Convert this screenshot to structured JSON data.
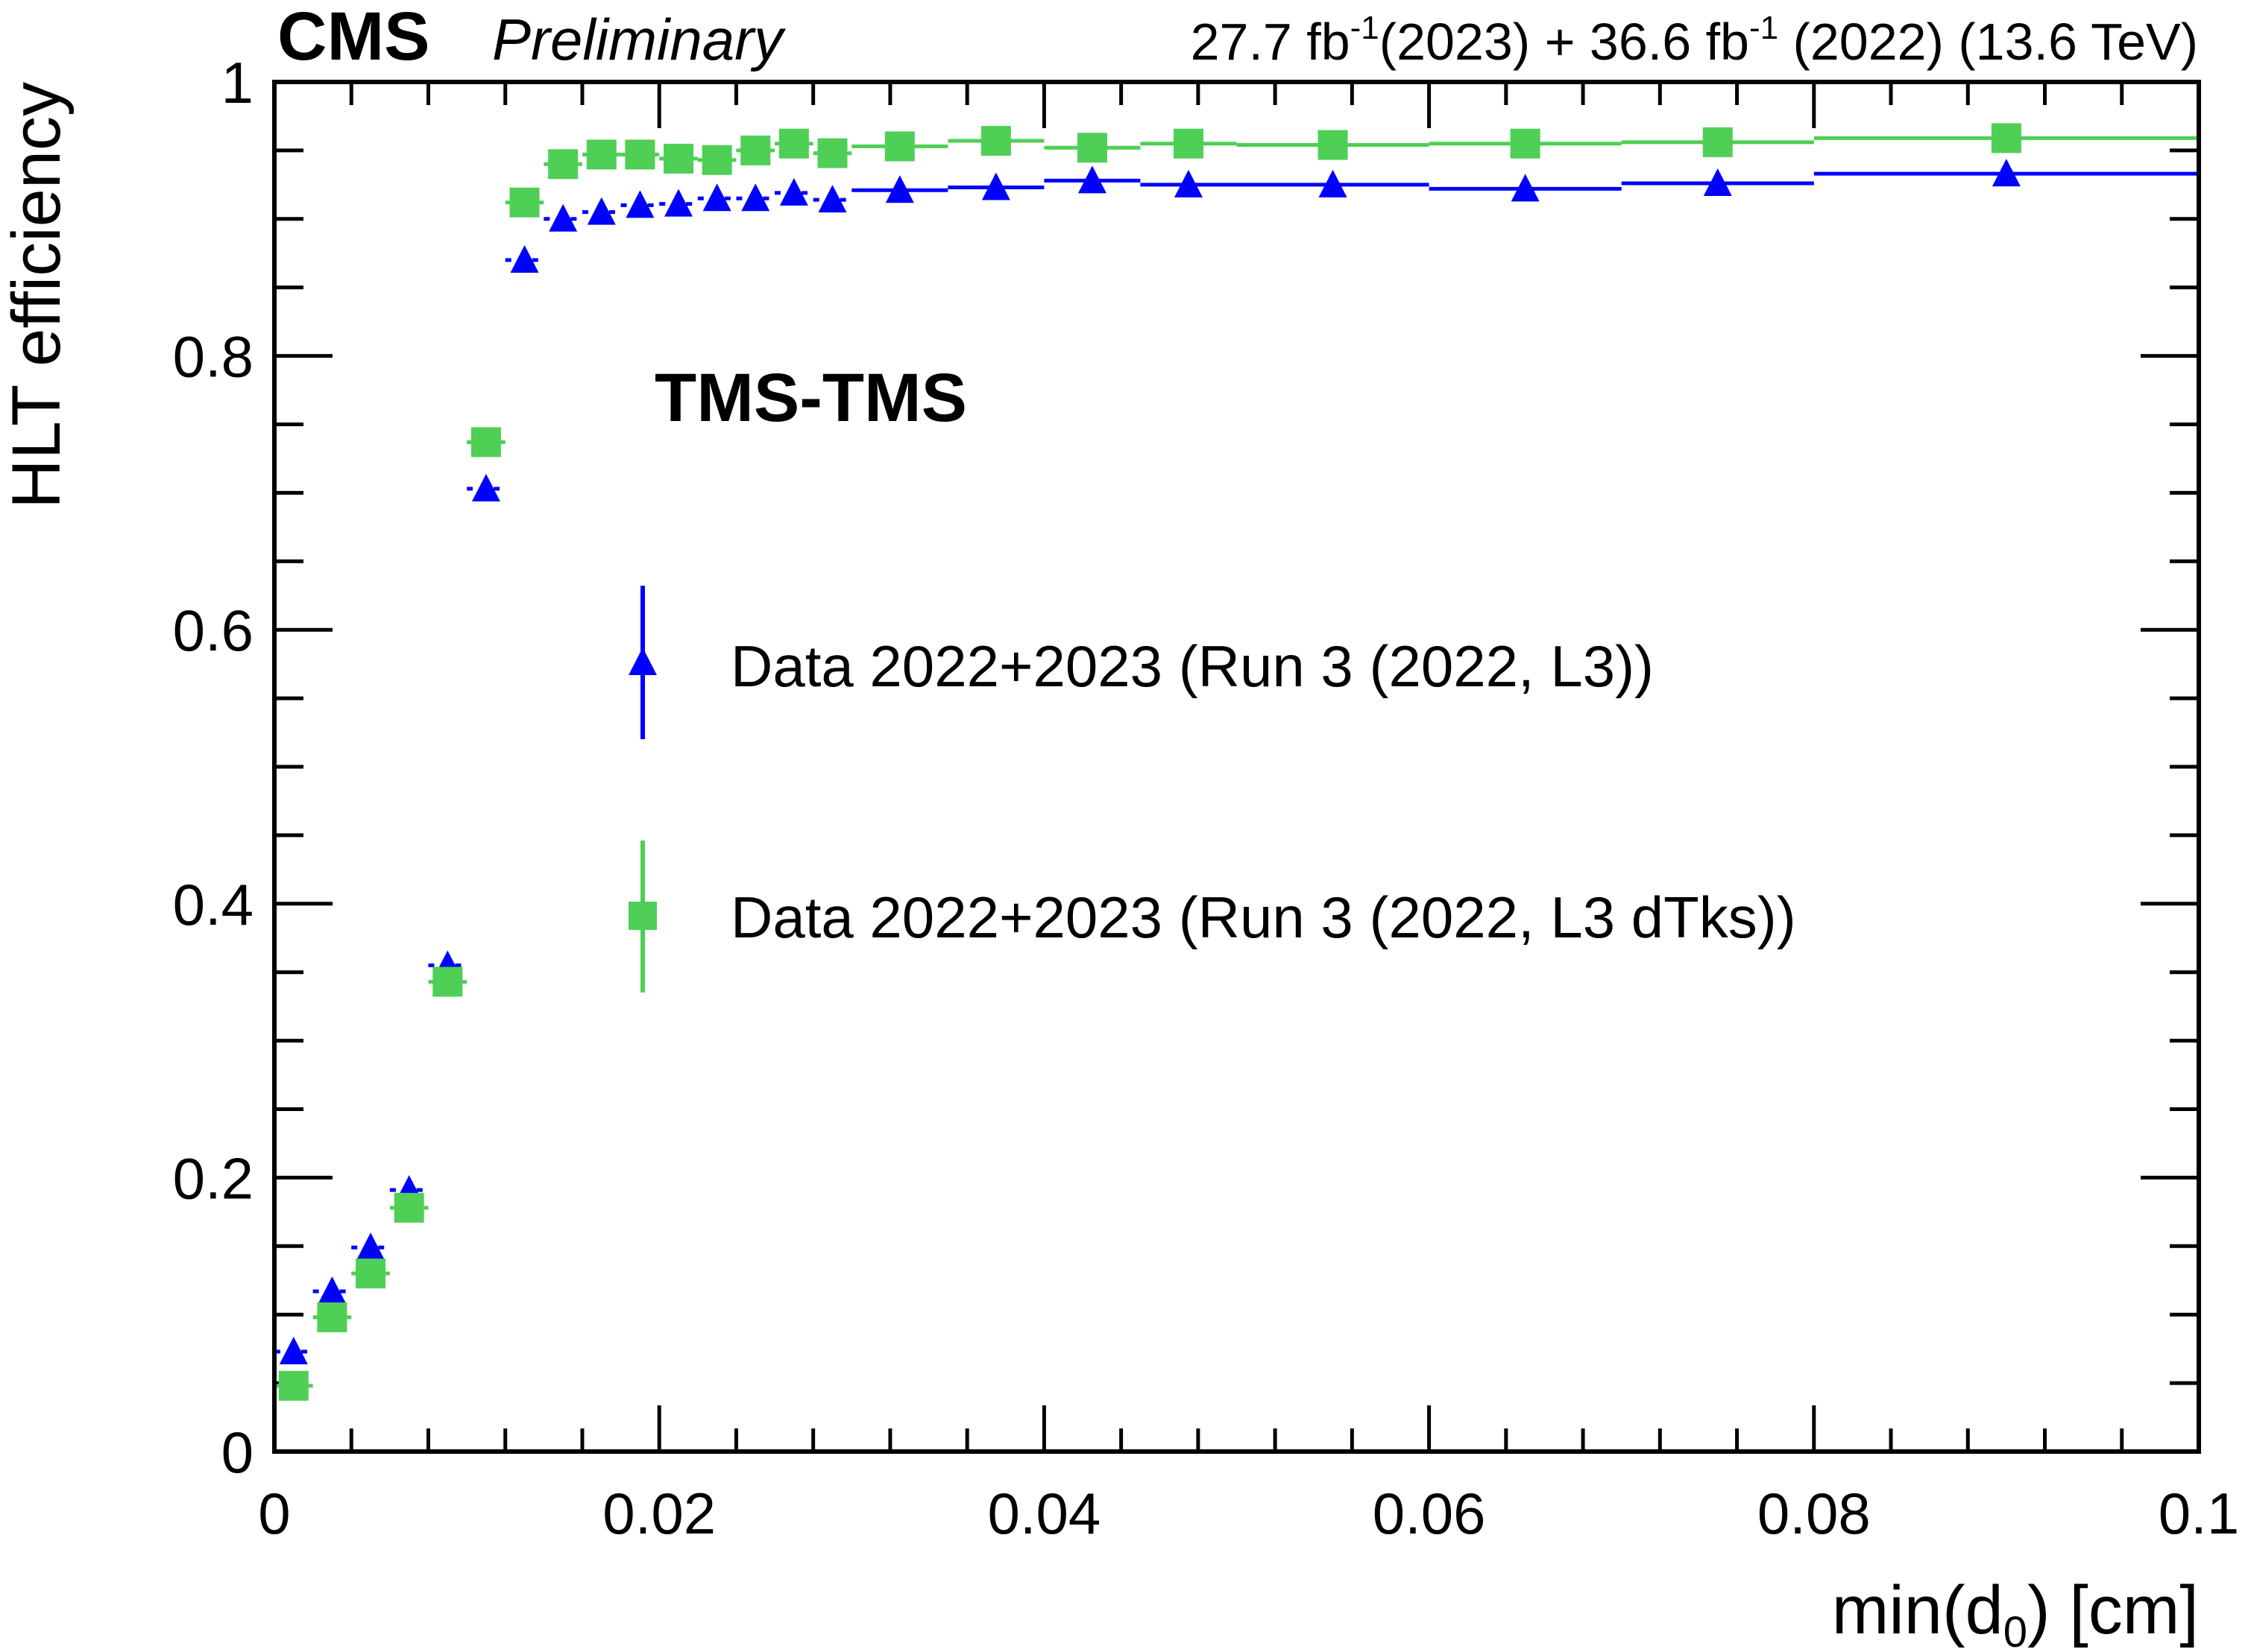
{
  "header": {
    "experiment": "CMS",
    "status": "Preliminary",
    "lumi_2023": "27.7 fb",
    "lumi_2023_sup": "-1",
    "lumi_2023_tag": "(2023) + 36.6 fb",
    "lumi_2022_sup": "-1",
    "lumi_2022_tag": " (2022) (13.6 TeV)"
  },
  "category_label": "TMS-TMS",
  "chart_data": {
    "type": "scatter",
    "xlabel_main": "min(d",
    "xlabel_sub": "0",
    "xlabel_tail": ") [cm]",
    "ylabel": "HLT efficiency",
    "xlim": [
      0,
      0.1
    ],
    "ylim": [
      0,
      1.0
    ],
    "xticks": [
      {
        "value": 0,
        "label": "0"
      },
      {
        "value": 0.02,
        "label": "0.02"
      },
      {
        "value": 0.04,
        "label": "0.04"
      },
      {
        "value": 0.06,
        "label": "0.06"
      },
      {
        "value": 0.08,
        "label": "0.08"
      },
      {
        "value": 0.1,
        "label": "0.1"
      }
    ],
    "yticks": [
      {
        "value": 0,
        "label": "0"
      },
      {
        "value": 0.2,
        "label": "0.2"
      },
      {
        "value": 0.4,
        "label": "0.4"
      },
      {
        "value": 0.6,
        "label": "0.6"
      },
      {
        "value": 0.8,
        "label": "0.8"
      },
      {
        "value": 1.0,
        "label": "1"
      }
    ],
    "legend_position": "center",
    "series": [
      {
        "name": "Data 2022+2023 (Run 3 (2022, L3))",
        "marker": "triangle",
        "color": "#0000ff",
        "bins": [
          {
            "x": 0.001,
            "lo": 0.0,
            "hi": 0.002,
            "y": 0.073
          },
          {
            "x": 0.003,
            "lo": 0.002,
            "hi": 0.004,
            "y": 0.117
          },
          {
            "x": 0.005,
            "lo": 0.004,
            "hi": 0.006,
            "y": 0.149
          },
          {
            "x": 0.007,
            "lo": 0.006,
            "hi": 0.008,
            "y": 0.191
          },
          {
            "x": 0.009,
            "lo": 0.008,
            "hi": 0.01,
            "y": 0.355
          },
          {
            "x": 0.011,
            "lo": 0.01,
            "hi": 0.012,
            "y": 0.703
          },
          {
            "x": 0.013,
            "lo": 0.012,
            "hi": 0.014,
            "y": 0.87
          },
          {
            "x": 0.015,
            "lo": 0.014,
            "hi": 0.016,
            "y": 0.9
          },
          {
            "x": 0.017,
            "lo": 0.016,
            "hi": 0.018,
            "y": 0.905
          },
          {
            "x": 0.019,
            "lo": 0.018,
            "hi": 0.02,
            "y": 0.91
          },
          {
            "x": 0.021,
            "lo": 0.02,
            "hi": 0.022,
            "y": 0.911
          },
          {
            "x": 0.023,
            "lo": 0.022,
            "hi": 0.024,
            "y": 0.915
          },
          {
            "x": 0.025,
            "lo": 0.024,
            "hi": 0.026,
            "y": 0.915
          },
          {
            "x": 0.027,
            "lo": 0.026,
            "hi": 0.028,
            "y": 0.919
          },
          {
            "x": 0.029,
            "lo": 0.028,
            "hi": 0.03,
            "y": 0.914
          },
          {
            "x": 0.0325,
            "lo": 0.03,
            "hi": 0.035,
            "y": 0.921
          },
          {
            "x": 0.0375,
            "lo": 0.035,
            "hi": 0.04,
            "y": 0.923
          },
          {
            "x": 0.0425,
            "lo": 0.04,
            "hi": 0.045,
            "y": 0.928
          },
          {
            "x": 0.0475,
            "lo": 0.045,
            "hi": 0.05,
            "y": 0.925
          },
          {
            "x": 0.055,
            "lo": 0.05,
            "hi": 0.06,
            "y": 0.925
          },
          {
            "x": 0.065,
            "lo": 0.06,
            "hi": 0.07,
            "y": 0.922
          },
          {
            "x": 0.075,
            "lo": 0.07,
            "hi": 0.08,
            "y": 0.926
          },
          {
            "x": 0.09,
            "lo": 0.08,
            "hi": 0.1,
            "y": 0.933
          }
        ]
      },
      {
        "name": "Data 2022+2023 (Run 3 (2022, L3 dTks))",
        "marker": "square",
        "color": "#4fcf56",
        "bins": [
          {
            "x": 0.001,
            "lo": 0.0,
            "hi": 0.002,
            "y": 0.048
          },
          {
            "x": 0.003,
            "lo": 0.002,
            "hi": 0.004,
            "y": 0.098
          },
          {
            "x": 0.005,
            "lo": 0.004,
            "hi": 0.006,
            "y": 0.13
          },
          {
            "x": 0.007,
            "lo": 0.006,
            "hi": 0.008,
            "y": 0.178
          },
          {
            "x": 0.009,
            "lo": 0.008,
            "hi": 0.01,
            "y": 0.343
          },
          {
            "x": 0.011,
            "lo": 0.01,
            "hi": 0.012,
            "y": 0.737
          },
          {
            "x": 0.013,
            "lo": 0.012,
            "hi": 0.014,
            "y": 0.912
          },
          {
            "x": 0.015,
            "lo": 0.014,
            "hi": 0.016,
            "y": 0.94
          },
          {
            "x": 0.017,
            "lo": 0.016,
            "hi": 0.018,
            "y": 0.947
          },
          {
            "x": 0.019,
            "lo": 0.018,
            "hi": 0.02,
            "y": 0.947
          },
          {
            "x": 0.021,
            "lo": 0.02,
            "hi": 0.022,
            "y": 0.944
          },
          {
            "x": 0.023,
            "lo": 0.022,
            "hi": 0.024,
            "y": 0.943
          },
          {
            "x": 0.025,
            "lo": 0.024,
            "hi": 0.026,
            "y": 0.95
          },
          {
            "x": 0.027,
            "lo": 0.026,
            "hi": 0.028,
            "y": 0.955
          },
          {
            "x": 0.029,
            "lo": 0.028,
            "hi": 0.03,
            "y": 0.948
          },
          {
            "x": 0.0325,
            "lo": 0.03,
            "hi": 0.035,
            "y": 0.953
          },
          {
            "x": 0.0375,
            "lo": 0.035,
            "hi": 0.04,
            "y": 0.957
          },
          {
            "x": 0.0425,
            "lo": 0.04,
            "hi": 0.045,
            "y": 0.952
          },
          {
            "x": 0.0475,
            "lo": 0.045,
            "hi": 0.05,
            "y": 0.955
          },
          {
            "x": 0.055,
            "lo": 0.05,
            "hi": 0.06,
            "y": 0.954
          },
          {
            "x": 0.065,
            "lo": 0.06,
            "hi": 0.07,
            "y": 0.955
          },
          {
            "x": 0.075,
            "lo": 0.07,
            "hi": 0.08,
            "y": 0.956
          },
          {
            "x": 0.09,
            "lo": 0.08,
            "hi": 0.1,
            "y": 0.959
          }
        ]
      }
    ]
  }
}
